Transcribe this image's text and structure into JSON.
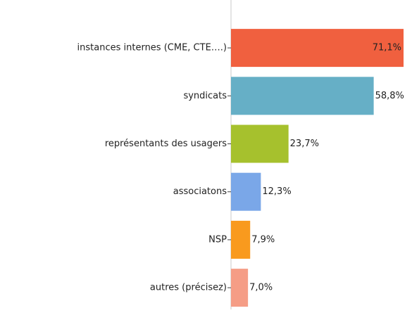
{
  "chart_data": {
    "type": "bar",
    "orientation": "horizontal",
    "categories": [
      "instances internes (CME, CTE….)",
      "syndicats",
      "représentants des usagers",
      "associatons",
      "NSP",
      "autres (précisez)"
    ],
    "values": [
      71.1,
      58.8,
      23.7,
      12.3,
      7.9,
      7.0
    ],
    "value_labels": [
      "71,1%",
      "58,8%",
      "23,7%",
      "12,3%",
      "7,9%",
      "7,0%"
    ],
    "colors": [
      "#f0603f",
      "#66afc6",
      "#a6c12d",
      "#7aa7e8",
      "#f99a1e",
      "#f59d86"
    ]
  }
}
